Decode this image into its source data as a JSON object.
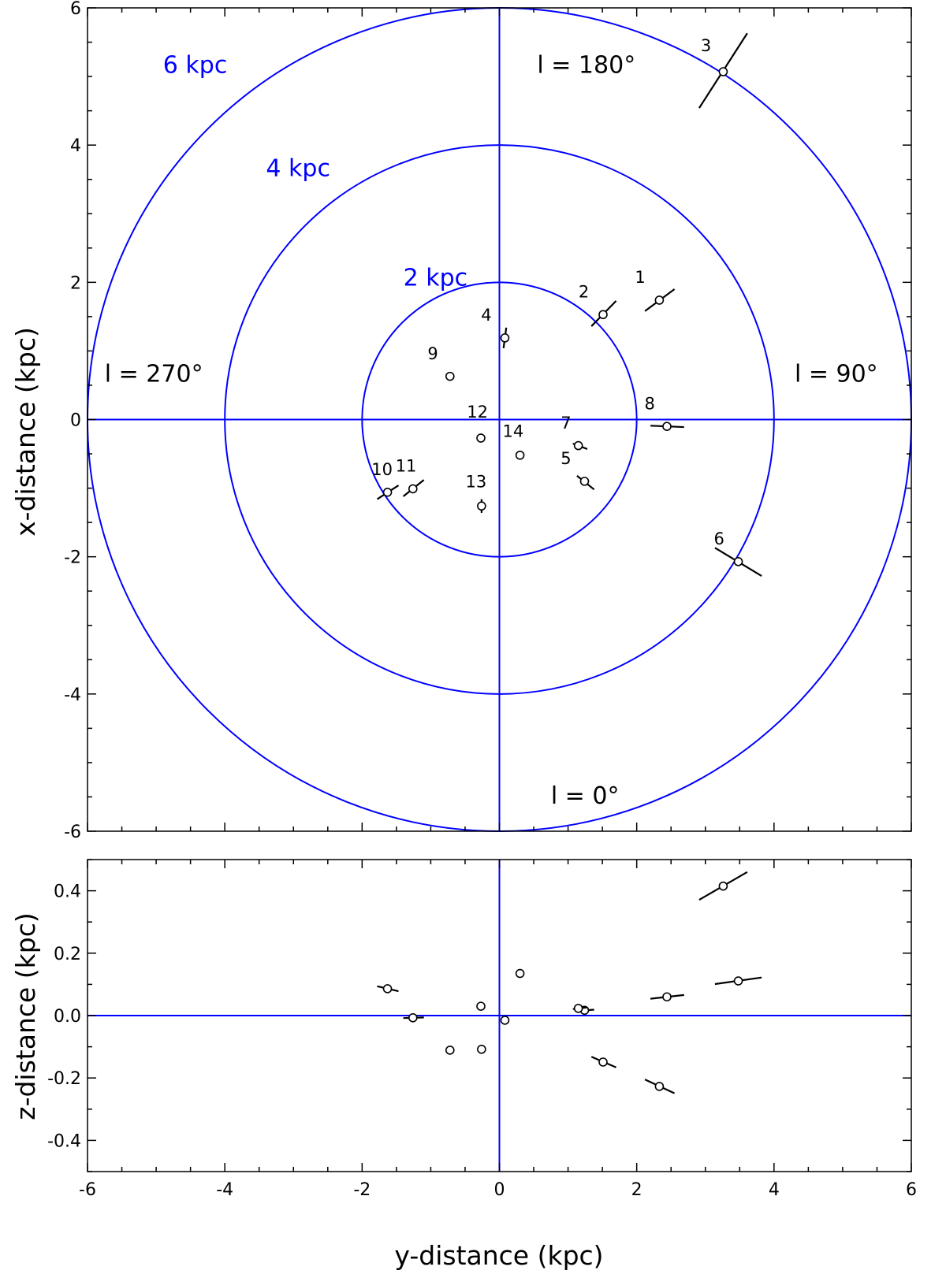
{
  "chart_data": [
    {
      "type": "scatter",
      "panel": "top",
      "xlabel": "",
      "ylabel": "x-distance (kpc)",
      "xlim": [
        -6,
        6
      ],
      "ylim": [
        -6,
        6
      ],
      "x_ticks": [
        "-6",
        "-4",
        "-2",
        "0",
        "2",
        "4",
        "6"
      ],
      "y_ticks": [
        "-6",
        "-4",
        "-2",
        "0",
        "2",
        "4",
        "6"
      ],
      "grid": false,
      "line_color": "#0000ff",
      "rings": [
        {
          "radius": 2,
          "label": "2 kpc",
          "label_x": -1.4,
          "label_y": 1.95
        },
        {
          "radius": 4,
          "label": "4 kpc",
          "label_x": -3.4,
          "label_y": 3.55
        },
        {
          "radius": 6,
          "label": "6 kpc",
          "label_x": -4.9,
          "label_y": 5.05
        }
      ],
      "longitude_labels": [
        {
          "text": "l = 180°",
          "x": 0.55,
          "y": 5.05
        },
        {
          "text": "l = 270°",
          "x": -5.75,
          "y": 0.55
        },
        {
          "text": "l = 90°",
          "x": 4.3,
          "y": 0.55
        },
        {
          "text": "l = 0°",
          "x": 0.75,
          "y": -5.6
        }
      ],
      "points": [
        {
          "label": "1",
          "x": 2.33,
          "y": 1.74,
          "err": [
            [
              2.12,
              1.58
            ],
            [
              2.55,
              1.9
            ]
          ],
          "label_dx": -0.28,
          "label_dy": 0.25
        },
        {
          "label": "2",
          "x": 1.51,
          "y": 1.53,
          "err": [
            [
              1.34,
              1.36
            ],
            [
              1.7,
              1.73
            ]
          ],
          "label_dx": -0.28,
          "label_dy": 0.25
        },
        {
          "label": "3",
          "x": 3.26,
          "y": 5.07,
          "err": [
            [
              2.91,
              4.54
            ],
            [
              3.61,
              5.63
            ]
          ],
          "label_dx": -0.25,
          "label_dy": 0.3
        },
        {
          "label": "4",
          "x": 0.08,
          "y": 1.19,
          "err": [
            [
              0.06,
              1.04
            ],
            [
              0.1,
              1.34
            ]
          ],
          "label_dx": -0.27,
          "label_dy": 0.25
        },
        {
          "label": "5",
          "x": 1.24,
          "y": -0.9,
          "err": [
            [
              1.13,
              -0.82
            ],
            [
              1.38,
              -1.02
            ]
          ],
          "label_dx": -0.27,
          "label_dy": 0.25
        },
        {
          "label": "6",
          "x": 3.48,
          "y": -2.07,
          "err": [
            [
              3.14,
              -1.87
            ],
            [
              3.82,
              -2.28
            ]
          ],
          "label_dx": -0.28,
          "label_dy": 0.25
        },
        {
          "label": "7",
          "x": 1.15,
          "y": -0.38,
          "err": [
            [
              1.07,
              -0.35
            ],
            [
              1.28,
              -0.43
            ]
          ],
          "label_dx": -0.18,
          "label_dy": 0.25
        },
        {
          "label": "8",
          "x": 2.44,
          "y": -0.1,
          "err": [
            [
              2.2,
              -0.09
            ],
            [
              2.69,
              -0.11
            ]
          ],
          "label_dx": -0.25,
          "label_dy": 0.25
        },
        {
          "label": "9",
          "x": -0.72,
          "y": 0.63,
          "err": [
            [
              -0.77,
              0.67
            ],
            [
              -0.67,
              0.59
            ]
          ],
          "label_dx": -0.25,
          "label_dy": 0.25
        },
        {
          "label": "10",
          "x": -1.63,
          "y": -1.06,
          "err": [
            [
              -1.78,
              -1.16
            ],
            [
              -1.47,
              -0.96
            ]
          ],
          "label_dx": -0.08,
          "label_dy": 0.25
        },
        {
          "label": "11",
          "x": -1.26,
          "y": -1.01,
          "err": [
            [
              -1.4,
              -1.12
            ],
            [
              -1.1,
              -0.88
            ]
          ],
          "label_dx": -0.1,
          "label_dy": 0.25
        },
        {
          "label": "12",
          "x": -0.27,
          "y": -0.27,
          "err": null,
          "label_dx": -0.05,
          "label_dy": 0.3
        },
        {
          "label": "13",
          "x": -0.26,
          "y": -1.26,
          "err": [
            [
              -0.26,
              -1.16
            ],
            [
              -0.26,
              -1.36
            ]
          ],
          "label_dx": -0.08,
          "label_dy": 0.27
        },
        {
          "label": "14",
          "x": 0.3,
          "y": -0.52,
          "err": null,
          "label_dx": -0.1,
          "label_dy": 0.27
        }
      ]
    },
    {
      "type": "scatter",
      "panel": "bottom",
      "xlabel": "y-distance (kpc)",
      "ylabel": "z-distance (kpc)",
      "xlim": [
        -6,
        6
      ],
      "ylim": [
        -0.5,
        0.5
      ],
      "x_ticks": [
        "-6",
        "-4",
        "-2",
        "0",
        "2",
        "4",
        "6"
      ],
      "y_ticks": [
        "-0.4",
        "-0.2",
        "0.0",
        "0.2",
        "0.4"
      ],
      "grid": false,
      "points": [
        {
          "x": 2.33,
          "y": -0.227,
          "err": [
            [
              2.12,
              -0.205
            ],
            [
              2.55,
              -0.249
            ]
          ]
        },
        {
          "x": 1.51,
          "y": -0.149,
          "err": [
            [
              1.34,
              -0.132
            ],
            [
              1.7,
              -0.166
            ]
          ]
        },
        {
          "x": 3.26,
          "y": 0.415,
          "err": [
            [
              2.91,
              0.371
            ],
            [
              3.61,
              0.46
            ]
          ]
        },
        {
          "x": 0.08,
          "y": -0.015,
          "err": null
        },
        {
          "x": 1.24,
          "y": 0.017,
          "err": [
            [
              1.13,
              0.015
            ],
            [
              1.38,
              0.019
            ]
          ]
        },
        {
          "x": 3.48,
          "y": 0.111,
          "err": [
            [
              3.14,
              0.101
            ],
            [
              3.82,
              0.122
            ]
          ]
        },
        {
          "x": 1.15,
          "y": 0.023,
          "err": [
            [
              1.07,
              0.021
            ],
            [
              1.28,
              0.026
            ]
          ]
        },
        {
          "x": 2.44,
          "y": 0.06,
          "err": [
            [
              2.2,
              0.054
            ],
            [
              2.69,
              0.066
            ]
          ]
        },
        {
          "x": -0.72,
          "y": -0.111,
          "err": [
            [
              -0.77,
              -0.119
            ],
            [
              -0.67,
              -0.103
            ]
          ]
        },
        {
          "x": -1.63,
          "y": 0.086,
          "err": [
            [
              -1.78,
              0.094
            ],
            [
              -1.47,
              0.078
            ]
          ]
        },
        {
          "x": -1.26,
          "y": -0.007,
          "err": [
            [
              -1.4,
              -0.008
            ],
            [
              -1.1,
              -0.006
            ]
          ]
        },
        {
          "x": -0.27,
          "y": 0.03,
          "err": null
        },
        {
          "x": -0.26,
          "y": -0.108,
          "err": null
        },
        {
          "x": 0.3,
          "y": 0.135,
          "err": [
            [
              0.28,
              0.125
            ],
            [
              0.32,
              0.145
            ]
          ]
        }
      ]
    }
  ]
}
